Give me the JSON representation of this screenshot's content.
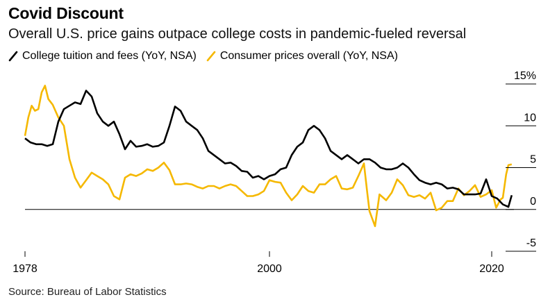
{
  "header": {
    "title": "Covid Discount",
    "subtitle": "Overall U.S. price gains outpace college costs in pandemic-fueled reversal"
  },
  "legend": [
    {
      "label": "College tuition and fees (YoY, NSA)",
      "color": "#000000"
    },
    {
      "label": "Consumer prices overall (YoY, NSA)",
      "color": "#f5b800"
    }
  ],
  "source": "Source: Bureau of Labor Statistics",
  "chart_data": {
    "type": "line",
    "title": "Covid Discount",
    "xlabel": "",
    "ylabel": "",
    "xlim": [
      1978,
      2022
    ],
    "ylim": [
      -5,
      15
    ],
    "x_ticks": [
      {
        "value": 1978,
        "label": "1978"
      },
      {
        "value": 2000,
        "label": "2000"
      },
      {
        "value": 2020,
        "label": "2020"
      }
    ],
    "y_ticks": [
      {
        "value": 15,
        "label": "15%"
      },
      {
        "value": 10,
        "label": "10"
      },
      {
        "value": 5,
        "label": "5"
      },
      {
        "value": 0,
        "label": "0"
      },
      {
        "value": -5,
        "label": "-5"
      }
    ],
    "series": [
      {
        "name": "College tuition and fees (YoY, NSA)",
        "color": "#000000",
        "points": [
          [
            1978.0,
            8.5
          ],
          [
            1978.5,
            8.0
          ],
          [
            1979.0,
            7.8
          ],
          [
            1979.5,
            7.8
          ],
          [
            1980.0,
            7.6
          ],
          [
            1980.5,
            7.8
          ],
          [
            1981.0,
            10.5
          ],
          [
            1981.5,
            12.0
          ],
          [
            1982.0,
            12.4
          ],
          [
            1982.5,
            12.8
          ],
          [
            1983.0,
            12.6
          ],
          [
            1983.5,
            14.2
          ],
          [
            1984.0,
            13.5
          ],
          [
            1984.5,
            11.5
          ],
          [
            1985.0,
            10.5
          ],
          [
            1985.5,
            10.0
          ],
          [
            1986.0,
            10.5
          ],
          [
            1986.5,
            9.0
          ],
          [
            1987.0,
            7.2
          ],
          [
            1987.5,
            8.2
          ],
          [
            1988.0,
            7.5
          ],
          [
            1988.5,
            7.6
          ],
          [
            1989.0,
            7.8
          ],
          [
            1989.5,
            7.5
          ],
          [
            1990.0,
            7.6
          ],
          [
            1990.5,
            8.0
          ],
          [
            1991.0,
            10.0
          ],
          [
            1991.5,
            12.3
          ],
          [
            1992.0,
            11.8
          ],
          [
            1992.5,
            10.5
          ],
          [
            1993.0,
            10.0
          ],
          [
            1993.5,
            9.5
          ],
          [
            1994.0,
            8.5
          ],
          [
            1994.5,
            7.0
          ],
          [
            1995.0,
            6.5
          ],
          [
            1995.5,
            6.0
          ],
          [
            1996.0,
            5.5
          ],
          [
            1996.5,
            5.6
          ],
          [
            1997.0,
            5.2
          ],
          [
            1997.5,
            4.6
          ],
          [
            1998.0,
            4.5
          ],
          [
            1998.5,
            3.8
          ],
          [
            1999.0,
            4.0
          ],
          [
            1999.5,
            3.6
          ],
          [
            2000.0,
            4.0
          ],
          [
            2000.5,
            4.2
          ],
          [
            2001.0,
            4.8
          ],
          [
            2001.5,
            5.0
          ],
          [
            2002.0,
            6.5
          ],
          [
            2002.5,
            7.5
          ],
          [
            2003.0,
            8.0
          ],
          [
            2003.5,
            9.5
          ],
          [
            2004.0,
            10.0
          ],
          [
            2004.5,
            9.5
          ],
          [
            2005.0,
            8.5
          ],
          [
            2005.5,
            7.0
          ],
          [
            2006.0,
            6.5
          ],
          [
            2006.5,
            6.0
          ],
          [
            2007.0,
            6.5
          ],
          [
            2007.5,
            6.0
          ],
          [
            2008.0,
            5.5
          ],
          [
            2008.5,
            6.0
          ],
          [
            2009.0,
            6.0
          ],
          [
            2009.5,
            5.6
          ],
          [
            2010.0,
            5.0
          ],
          [
            2010.5,
            4.8
          ],
          [
            2011.0,
            4.8
          ],
          [
            2011.5,
            5.0
          ],
          [
            2012.0,
            5.5
          ],
          [
            2012.5,
            5.0
          ],
          [
            2013.0,
            4.2
          ],
          [
            2013.5,
            3.5
          ],
          [
            2014.0,
            3.2
          ],
          [
            2014.5,
            3.0
          ],
          [
            2015.0,
            3.2
          ],
          [
            2015.5,
            3.0
          ],
          [
            2016.0,
            2.5
          ],
          [
            2016.5,
            2.6
          ],
          [
            2017.0,
            2.4
          ],
          [
            2017.5,
            1.8
          ],
          [
            2018.0,
            1.8
          ],
          [
            2018.5,
            1.8
          ],
          [
            2019.0,
            1.9
          ],
          [
            2019.5,
            3.6
          ],
          [
            2020.0,
            1.6
          ],
          [
            2020.5,
            1.3
          ],
          [
            2021.0,
            0.6
          ],
          [
            2021.5,
            0.3
          ],
          [
            2021.8,
            1.7
          ]
        ]
      },
      {
        "name": "Consumer prices overall (YoY, NSA)",
        "color": "#f5b800",
        "points": [
          [
            1978.0,
            8.8
          ],
          [
            1978.3,
            11.0
          ],
          [
            1978.6,
            12.4
          ],
          [
            1978.9,
            11.8
          ],
          [
            1979.2,
            12.0
          ],
          [
            1979.5,
            14.0
          ],
          [
            1979.8,
            14.8
          ],
          [
            1980.1,
            13.2
          ],
          [
            1980.5,
            12.5
          ],
          [
            1981.0,
            11.0
          ],
          [
            1981.5,
            10.0
          ],
          [
            1982.0,
            6.0
          ],
          [
            1982.5,
            3.8
          ],
          [
            1983.0,
            2.6
          ],
          [
            1983.5,
            3.5
          ],
          [
            1984.0,
            4.4
          ],
          [
            1984.5,
            4.0
          ],
          [
            1985.0,
            3.6
          ],
          [
            1985.5,
            3.0
          ],
          [
            1986.0,
            1.6
          ],
          [
            1986.5,
            1.2
          ],
          [
            1987.0,
            3.8
          ],
          [
            1987.5,
            4.2
          ],
          [
            1988.0,
            4.0
          ],
          [
            1988.5,
            4.3
          ],
          [
            1989.0,
            4.8
          ],
          [
            1989.5,
            4.6
          ],
          [
            1990.0,
            5.0
          ],
          [
            1990.5,
            5.6
          ],
          [
            1991.0,
            4.7
          ],
          [
            1991.5,
            3.0
          ],
          [
            1992.0,
            3.0
          ],
          [
            1992.5,
            3.1
          ],
          [
            1993.0,
            3.0
          ],
          [
            1993.5,
            2.7
          ],
          [
            1994.0,
            2.5
          ],
          [
            1994.5,
            2.8
          ],
          [
            1995.0,
            2.8
          ],
          [
            1995.5,
            2.5
          ],
          [
            1996.0,
            2.8
          ],
          [
            1996.5,
            3.0
          ],
          [
            1997.0,
            2.8
          ],
          [
            1997.5,
            2.2
          ],
          [
            1998.0,
            1.6
          ],
          [
            1998.5,
            1.6
          ],
          [
            1999.0,
            1.8
          ],
          [
            1999.5,
            2.2
          ],
          [
            2000.0,
            3.5
          ],
          [
            2000.5,
            3.3
          ],
          [
            2001.0,
            3.2
          ],
          [
            2001.5,
            2.0
          ],
          [
            2002.0,
            1.1
          ],
          [
            2002.5,
            1.8
          ],
          [
            2003.0,
            2.8
          ],
          [
            2003.5,
            2.2
          ],
          [
            2004.0,
            2.0
          ],
          [
            2004.5,
            3.0
          ],
          [
            2005.0,
            3.0
          ],
          [
            2005.5,
            3.6
          ],
          [
            2006.0,
            4.0
          ],
          [
            2006.5,
            2.5
          ],
          [
            2007.0,
            2.4
          ],
          [
            2007.5,
            2.6
          ],
          [
            2008.0,
            4.0
          ],
          [
            2008.5,
            5.5
          ],
          [
            2008.8,
            2.0
          ],
          [
            2009.0,
            -0.2
          ],
          [
            2009.5,
            -2.0
          ],
          [
            2009.9,
            1.8
          ],
          [
            2010.5,
            1.1
          ],
          [
            2011.0,
            2.0
          ],
          [
            2011.5,
            3.6
          ],
          [
            2012.0,
            2.9
          ],
          [
            2012.5,
            1.7
          ],
          [
            2013.0,
            1.5
          ],
          [
            2013.5,
            1.7
          ],
          [
            2014.0,
            1.3
          ],
          [
            2014.5,
            2.0
          ],
          [
            2015.0,
            -0.1
          ],
          [
            2015.5,
            0.2
          ],
          [
            2016.0,
            1.0
          ],
          [
            2016.5,
            1.0
          ],
          [
            2017.0,
            2.5
          ],
          [
            2017.5,
            1.7
          ],
          [
            2018.0,
            2.2
          ],
          [
            2018.5,
            2.9
          ],
          [
            2019.0,
            1.5
          ],
          [
            2019.5,
            1.8
          ],
          [
            2020.0,
            2.3
          ],
          [
            2020.4,
            0.2
          ],
          [
            2020.8,
            1.2
          ],
          [
            2021.0,
            1.4
          ],
          [
            2021.3,
            4.2
          ],
          [
            2021.5,
            5.3
          ],
          [
            2021.8,
            5.4
          ]
        ]
      }
    ]
  }
}
